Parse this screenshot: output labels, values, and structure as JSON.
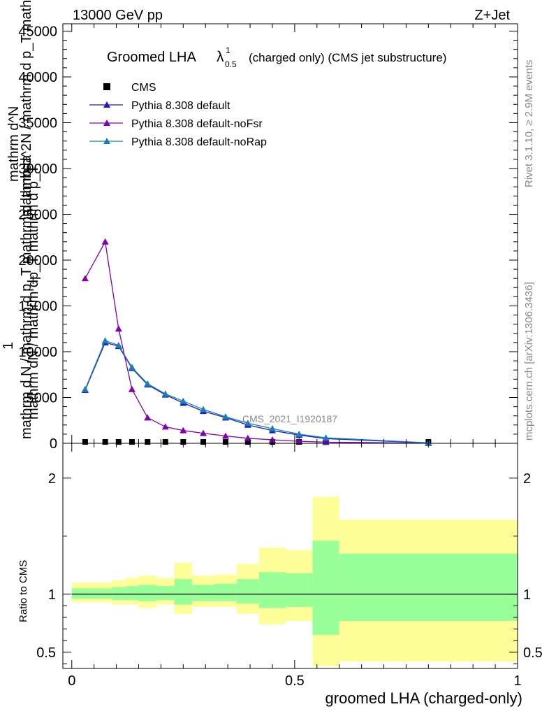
{
  "header": {
    "left": "13000 GeV pp",
    "right": "Z+Jet"
  },
  "side_labels": {
    "rivet": "Rivet 3.1.10, ≥ 2.9M events",
    "mcplots": "mcplots.cern.ch [arXiv:1306.3436]"
  },
  "watermark": "CMS_2021_I1920187",
  "title": {
    "main": "Groomed LHA",
    "lambda": "λ",
    "sup": "1",
    "sub": "0.5",
    "rest": "(charged only) (CMS jet substructure)"
  },
  "legend": [
    {
      "label": "CMS",
      "color": "#000000",
      "marker": "square"
    },
    {
      "label": "Pythia 8.308 default",
      "color": "#1a1acc",
      "marker": "triangle"
    },
    {
      "label": "Pythia 8.308 default-noFsr",
      "color": "#8000b4",
      "marker": "triangle"
    },
    {
      "label": "Pythia 8.308 default-noRap",
      "color": "#1a80b4",
      "marker": "triangle"
    }
  ],
  "y_title_main": {
    "one": "1",
    "line1": "mathrm d N / mathrm d p_T mathrm d lambda",
    "line2": "mathrm dN / mathrm dp_T mathrm d p_T",
    "line3": "mathrm d^2N / mathrm d p_T mathrm d lambda",
    "line4": "mathrm d^N"
  },
  "ratio_ylabel": "Ratio to CMS",
  "xlabel": "groomed LHA (charged-only)",
  "chart_data": {
    "type": "line",
    "xlim": [
      -0.02,
      1.0
    ],
    "main_ylim": [
      0,
      45800
    ],
    "main_yticks": [
      "0",
      "5000",
      "10000",
      "15000",
      "20000",
      "25000",
      "30000",
      "35000",
      "40000",
      "45000"
    ],
    "ratio_ylim": [
      0.36,
      2.3
    ],
    "ratio_yticks": [
      "0.5",
      "1",
      "2"
    ],
    "xticks": [
      "0",
      "0.5",
      "1"
    ],
    "bins": [
      0,
      0.06,
      0.09,
      0.12,
      0.15,
      0.19,
      0.23,
      0.27,
      0.32,
      0.37,
      0.42,
      0.48,
      0.54,
      0.6,
      1.0
    ],
    "x": [
      0.03,
      0.075,
      0.105,
      0.135,
      0.17,
      0.21,
      0.25,
      0.295,
      0.345,
      0.395,
      0.45,
      0.51,
      0.57,
      0.8
    ],
    "series": [
      {
        "name": "CMS",
        "values": [
          150,
          150,
          150,
          150,
          150,
          150,
          150,
          150,
          150,
          150,
          150,
          150,
          150,
          150
        ]
      },
      {
        "name": "Pythia 8.308 default",
        "values": [
          5800,
          11000,
          10600,
          8200,
          6400,
          5300,
          4400,
          3500,
          2800,
          2000,
          1400,
          900,
          500,
          40
        ]
      },
      {
        "name": "Pythia 8.308 default-noFsr",
        "values": [
          18000,
          22000,
          12500,
          5900,
          2800,
          1800,
          1400,
          1100,
          800,
          550,
          380,
          220,
          120,
          10
        ]
      },
      {
        "name": "Pythia 8.308 default-noRap",
        "values": [
          5900,
          11200,
          10700,
          8300,
          6500,
          5400,
          4600,
          3700,
          2900,
          2200,
          1600,
          1000,
          600,
          50
        ]
      }
    ],
    "ratio_bands": {
      "yellow_low": [
        0.93,
        0.93,
        0.91,
        0.91,
        0.88,
        0.91,
        0.83,
        0.89,
        0.89,
        0.83,
        0.74,
        0.77,
        0.38,
        0.42
      ],
      "yellow_high": [
        1.1,
        1.1,
        1.12,
        1.14,
        1.16,
        1.14,
        1.27,
        1.16,
        1.17,
        1.26,
        1.4,
        1.38,
        1.84,
        1.64
      ],
      "green_low": [
        0.96,
        0.96,
        0.95,
        0.95,
        0.94,
        0.95,
        0.91,
        0.94,
        0.94,
        0.92,
        0.88,
        0.89,
        0.65,
        0.77
      ],
      "green_high": [
        1.05,
        1.05,
        1.06,
        1.07,
        1.08,
        1.07,
        1.13,
        1.08,
        1.09,
        1.13,
        1.19,
        1.18,
        1.46,
        1.35
      ]
    }
  }
}
